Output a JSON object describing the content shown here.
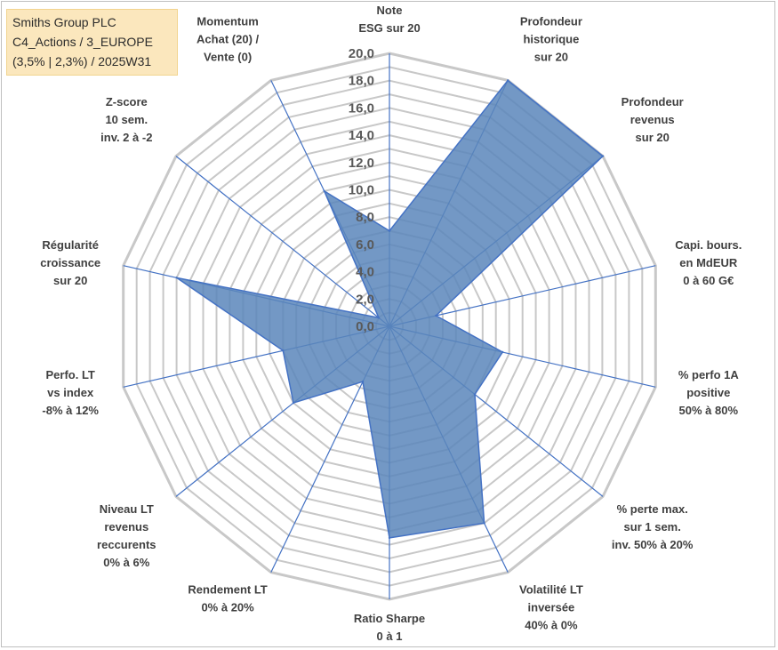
{
  "title_box": {
    "line1": "Smiths Group PLC",
    "line2": "C4_Actions / 3_EUROPE",
    "line3": "(3,5% | 2,3%) / 2025W31"
  },
  "colors": {
    "fill": "#5b86bb",
    "stroke": "#4472c4",
    "grid": "#c8c8c8",
    "spoke": "#4472c4",
    "title_bg": "#fbe7bd"
  },
  "chart_data": {
    "type": "radar",
    "rmin": 0,
    "rmax": 20,
    "grid_step": 1,
    "tick_labels": [
      "0,0",
      "2,0",
      "4,0",
      "6,0",
      "8,0",
      "10,0",
      "12,0",
      "14,0",
      "16,0",
      "18,0",
      "20,0"
    ],
    "categories": [
      [
        "Note",
        "ESG sur 20"
      ],
      [
        "Profondeur",
        "historique",
        "sur 20"
      ],
      [
        "Profondeur",
        "revenus",
        "sur 20"
      ],
      [
        "Capi. bours.",
        "en MdEUR",
        "0 à 60 G€"
      ],
      [
        "% perfo 1A",
        "positive",
        "50% à 80%"
      ],
      [
        "% perte max.",
        "sur 1 sem.",
        "inv. 50% à 20%"
      ],
      [
        "Volatilité LT",
        "inversée",
        "40% à 0%"
      ],
      [
        "Ratio Sharpe",
        "0 à 1"
      ],
      [
        "Rendement LT",
        "0% à 20%"
      ],
      [
        "Niveau LT",
        "revenus",
        "reccurents",
        "0% à 6%"
      ],
      [
        "Perfo. LT",
        "vs index",
        "-8% à 12%"
      ],
      [
        "Régularité",
        "croissance",
        "sur 20"
      ],
      [
        "Z-score",
        "10 sem.",
        "inv. 2 à -2"
      ],
      [
        "Momentum",
        "Achat (20) /",
        "Vente (0)"
      ]
    ],
    "series": [
      {
        "values": [
          7,
          20,
          20,
          3.5,
          8.5,
          8,
          16,
          15.5,
          4.5,
          9,
          8,
          16,
          1,
          11
        ]
      }
    ]
  }
}
